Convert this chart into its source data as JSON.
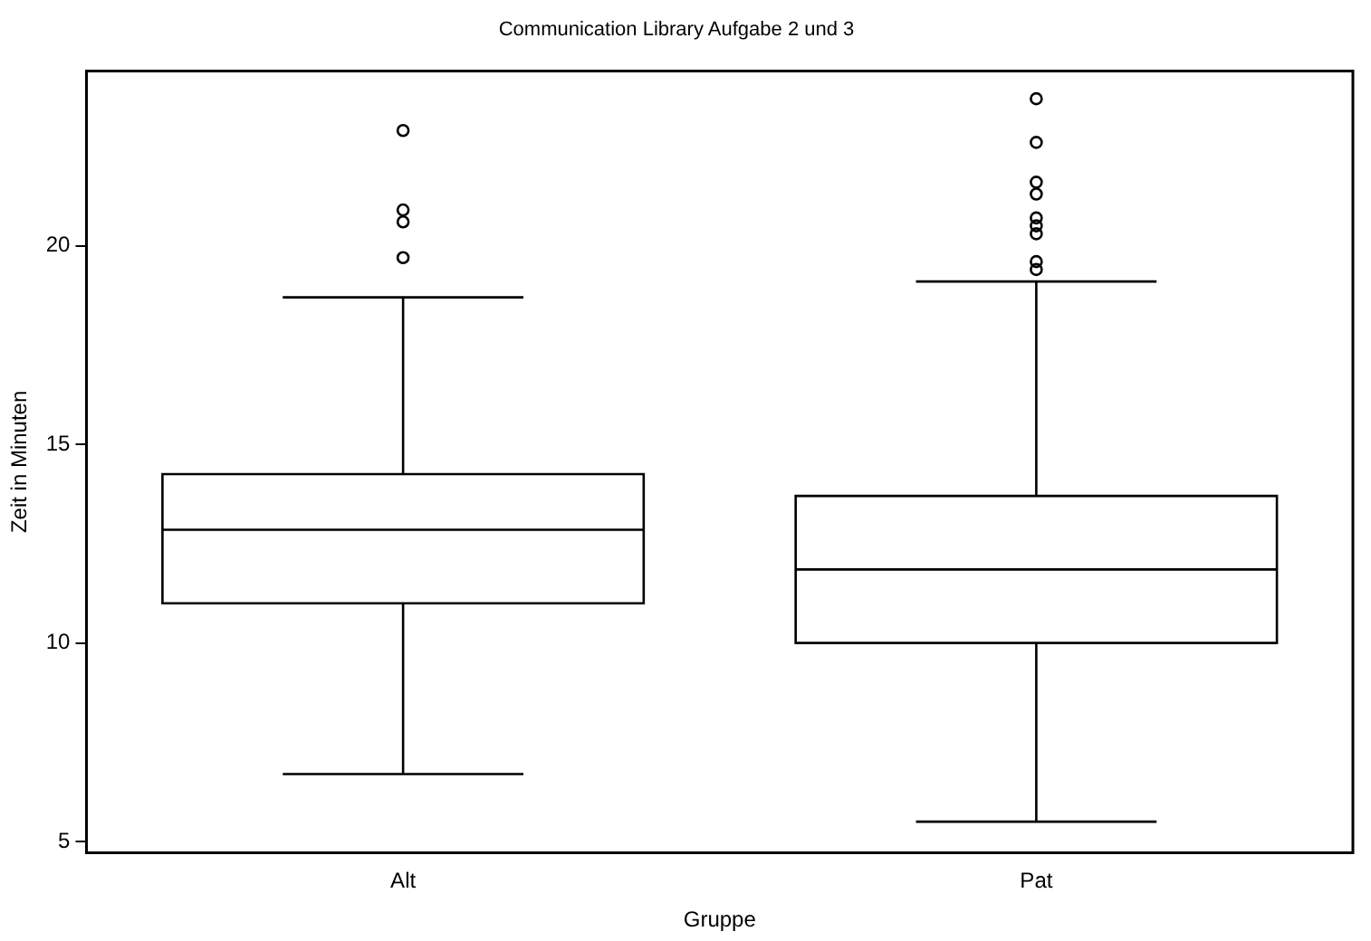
{
  "chart_data": {
    "type": "box",
    "title": "Communication Library Aufgabe 2 und 3",
    "xlabel": "Gruppe",
    "ylabel": "Zeit in Minuten",
    "categories": [
      "Alt",
      "Pat"
    ],
    "boxes": [
      {
        "low": 6.7,
        "q1": 11.0,
        "median": 12.85,
        "q3": 14.25,
        "high": 18.7,
        "outliers": [
          22.9,
          20.9,
          20.6,
          19.7
        ]
      },
      {
        "low": 5.5,
        "q1": 10.0,
        "median": 11.85,
        "q3": 13.7,
        "high": 19.1,
        "outliers": [
          23.7,
          22.6,
          21.6,
          21.3,
          20.7,
          20.5,
          20.3,
          19.6,
          19.4
        ]
      }
    ],
    "ylim": [
      4.72,
      24.4
    ],
    "yticks": [
      5,
      10,
      15,
      20
    ],
    "grid": false,
    "legend": false,
    "color": "#000000"
  }
}
